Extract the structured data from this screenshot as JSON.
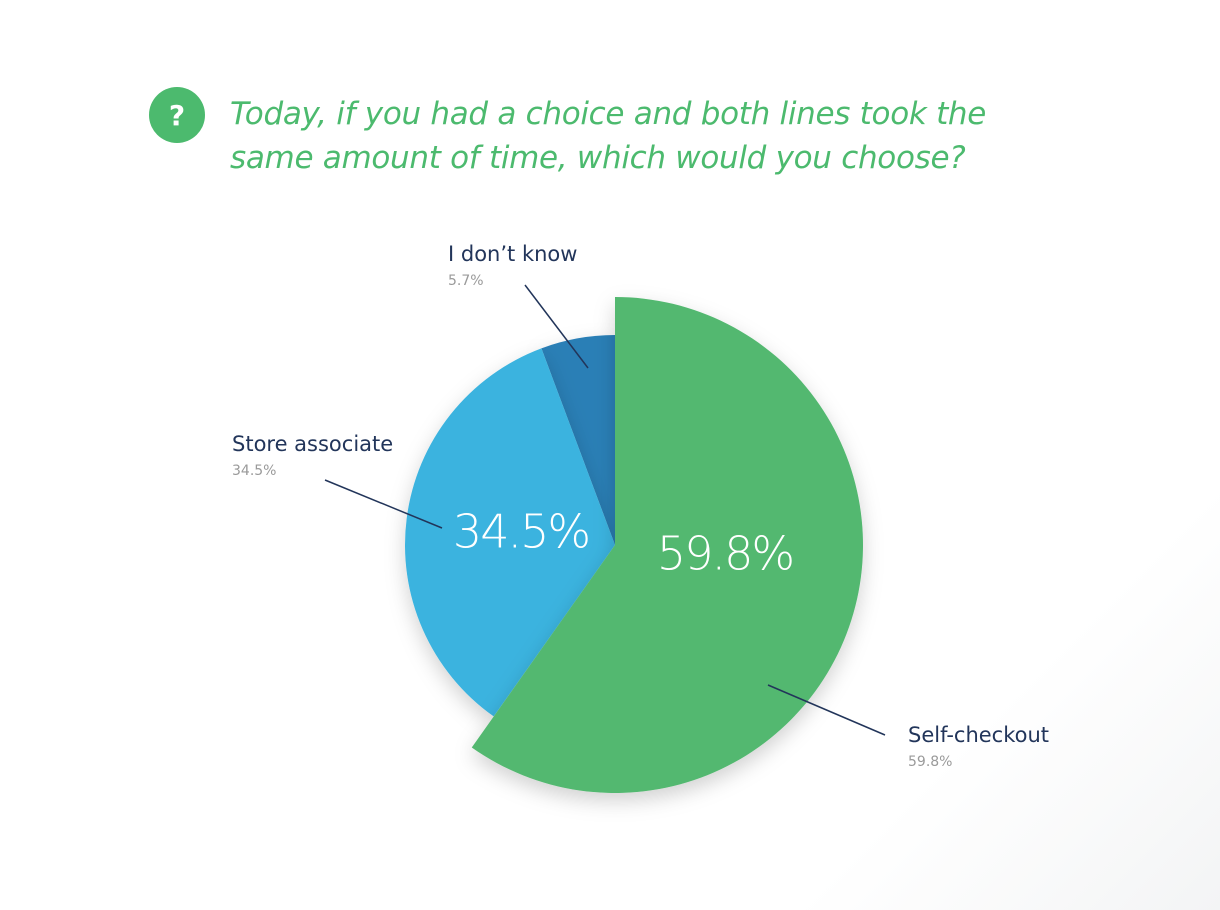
{
  "icon": "?",
  "chart_data": {
    "type": "pie",
    "title": "Today, if you had a choice and both lines took the same amount of time, which would you choose?",
    "categories": [
      "Self-checkout",
      "Store associate",
      "I don’t know"
    ],
    "values": [
      59.8,
      34.5,
      5.7
    ],
    "value_labels": [
      "59.8%",
      "34.5%",
      "5.7%"
    ],
    "colors": [
      "#52b86f",
      "#3ab3df",
      "#2c7fb6"
    ]
  }
}
